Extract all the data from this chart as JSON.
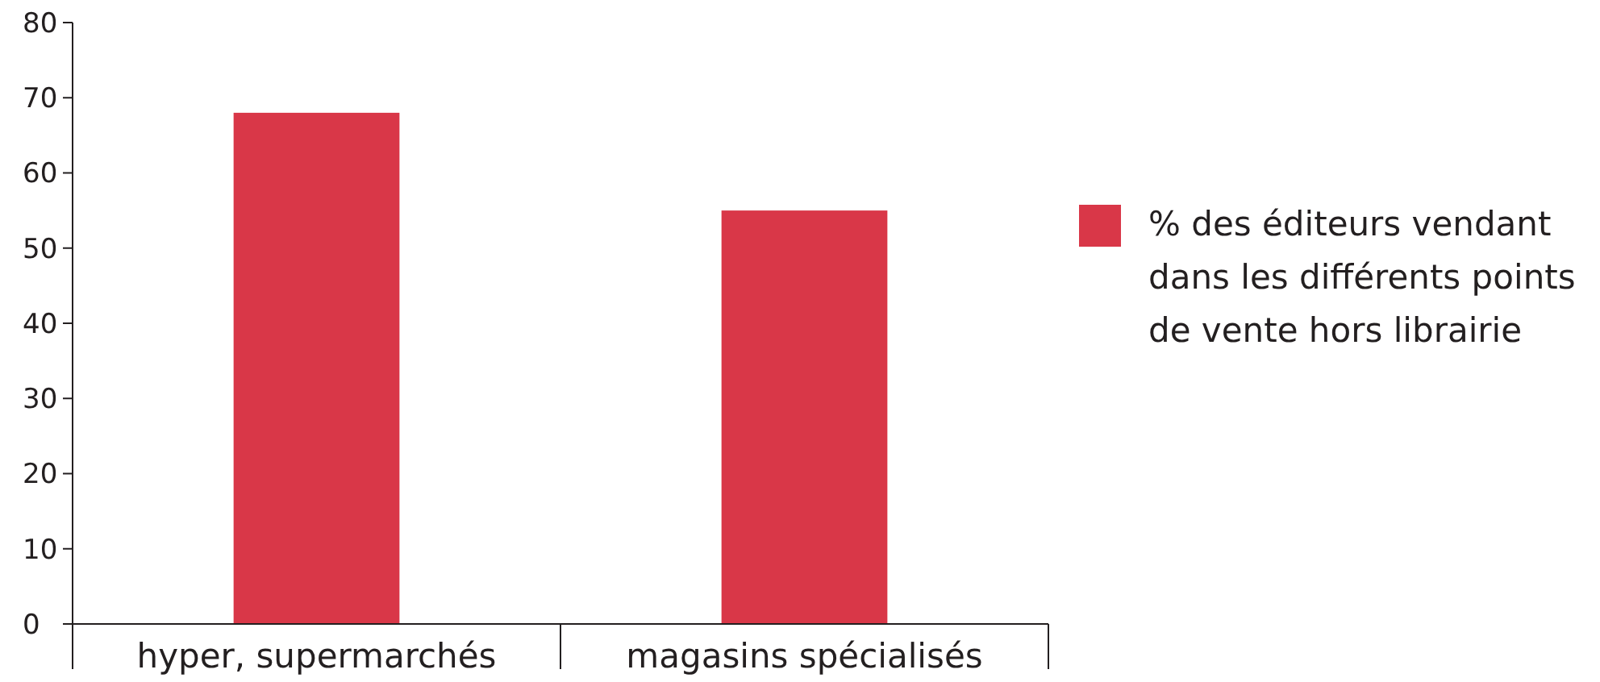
{
  "chart_data": {
    "type": "bar",
    "categories": [
      "hyper, supermarchés",
      "magasins spécialisés"
    ],
    "series": [
      {
        "name": "% des éditeurs vendant dans les différents points de vente hors librairie",
        "color": "#d93748",
        "values": [
          68,
          55
        ]
      }
    ],
    "ylim": [
      0,
      80
    ],
    "yticks": [
      0,
      10,
      20,
      30,
      40,
      50,
      60,
      70,
      80
    ],
    "legend": "right"
  }
}
